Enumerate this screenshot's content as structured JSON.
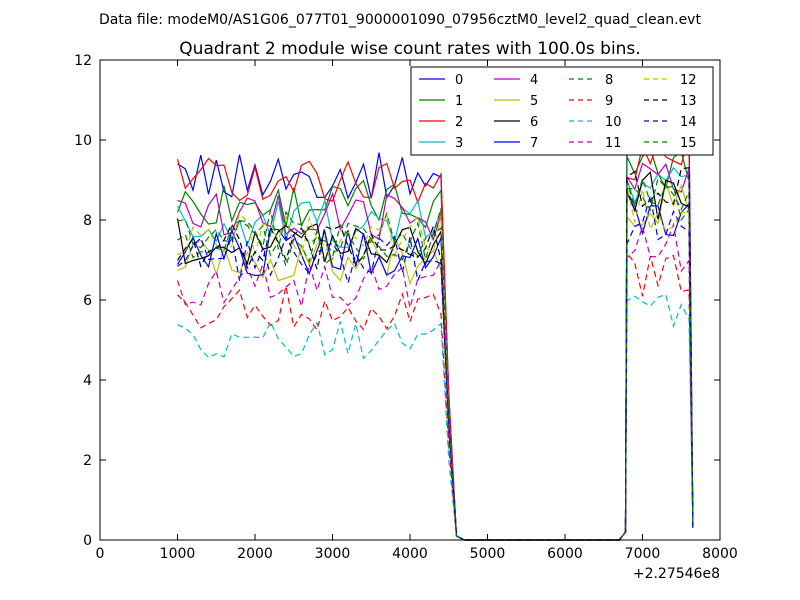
{
  "figure": {
    "suptitle": "Data file: modeM0/AS1G06_077T01_9000001090_07956cztM0_level2_quad_clean.evt"
  },
  "chart_data": {
    "type": "line",
    "title": "Quadrant 2 module wise count rates with 100.0s bins.",
    "xlabel": "",
    "ylabel": "",
    "x_offset_label": "+2.27546e8",
    "xlim": [
      0,
      8000
    ],
    "ylim": [
      0,
      12
    ],
    "xticks": [
      0,
      1000,
      2000,
      3000,
      4000,
      5000,
      6000,
      7000,
      8000
    ],
    "xtick_labels": [
      "0",
      "1000",
      "2000",
      "3000",
      "4000",
      "5000",
      "6000",
      "7000",
      "8000"
    ],
    "yticks": [
      0,
      2,
      4,
      6,
      8,
      10,
      12
    ],
    "ytick_labels": [
      "0",
      "2",
      "4",
      "6",
      "8",
      "10",
      "12"
    ],
    "grid": false,
    "legend_position": "top-right",
    "legend_columns": 4,
    "segment1_start": 1000,
    "segment1_end": 4400,
    "segment2_start": 6800,
    "segment2_end": 7600,
    "bin_width": 100,
    "series": [
      {
        "name": "0",
        "color": "#0000ff",
        "dash": "solid",
        "base": 9.1,
        "spread": 0.3,
        "seg2": 10.0
      },
      {
        "name": "1",
        "color": "#008000",
        "dash": "solid",
        "base": 8.4,
        "spread": 0.3,
        "seg2": 9.2
      },
      {
        "name": "2",
        "color": "#ff0000",
        "dash": "solid",
        "base": 9.0,
        "spread": 0.3,
        "seg2": 9.6
      },
      {
        "name": "3",
        "color": "#00bfbf",
        "dash": "solid",
        "base": 7.9,
        "spread": 0.3,
        "seg2": 9.0
      },
      {
        "name": "4",
        "color": "#bf00bf",
        "dash": "solid",
        "base": 8.1,
        "spread": 0.3,
        "seg2": 9.1
      },
      {
        "name": "5",
        "color": "#bfbf00",
        "dash": "solid",
        "base": 7.0,
        "spread": 0.3,
        "seg2": 8.4
      },
      {
        "name": "6",
        "color": "#000000",
        "dash": "solid",
        "base": 7.5,
        "spread": 0.3,
        "seg2": 8.6
      },
      {
        "name": "7",
        "color": "#0000ff",
        "dash": "solid",
        "base": 7.2,
        "spread": 0.3,
        "seg2": 8.2
      },
      {
        "name": "8",
        "color": "#008000",
        "dash": "dashed",
        "base": 7.7,
        "spread": 0.3,
        "seg2": 8.7
      },
      {
        "name": "9",
        "color": "#ff0000",
        "dash": "dashed",
        "base": 5.8,
        "spread": 0.3,
        "seg2": 6.6
      },
      {
        "name": "10",
        "color": "#00bfbf",
        "dash": "dashed",
        "base": 5.0,
        "spread": 0.25,
        "seg2": 5.8
      },
      {
        "name": "11",
        "color": "#bf00bf",
        "dash": "dashed",
        "base": 6.4,
        "spread": 0.3,
        "seg2": 7.3
      },
      {
        "name": "12",
        "color": "#bfbf00",
        "dash": "dashed",
        "base": 7.6,
        "spread": 0.3,
        "seg2": 8.3
      },
      {
        "name": "13",
        "color": "#000000",
        "dash": "dashed",
        "base": 7.3,
        "spread": 0.3,
        "seg2": 8.8
      },
      {
        "name": "14",
        "color": "#0000ff",
        "dash": "dashed",
        "base": 7.0,
        "spread": 0.3,
        "seg2": 8.0
      },
      {
        "name": "15",
        "color": "#008000",
        "dash": "dashed",
        "base": 7.4,
        "spread": 0.3,
        "seg2": 8.5
      }
    ]
  }
}
